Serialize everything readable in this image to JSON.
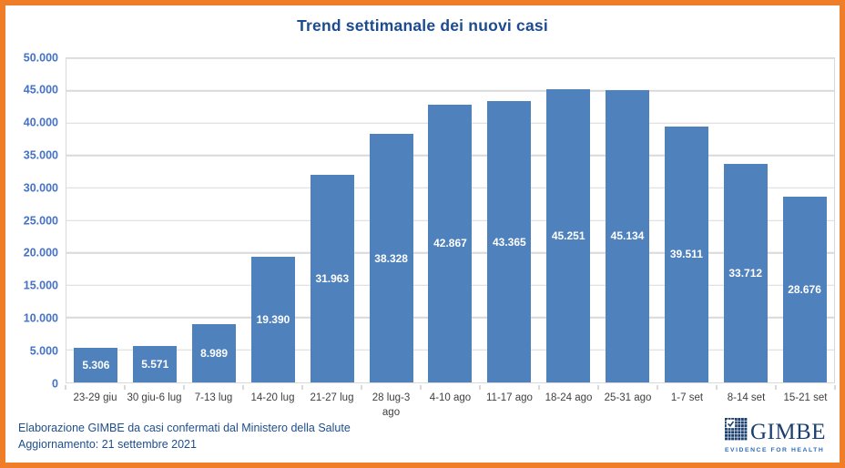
{
  "chart_data": {
    "type": "bar",
    "title": "Trend settimanale dei nuovi casi",
    "categories": [
      "23-29 giu",
      "30 giu-6 lug",
      "7-13 lug",
      "14-20 lug",
      "21-27 lug",
      "28 lug-3 ago",
      "4-10 ago",
      "11-17 ago",
      "18-24 ago",
      "25-31 ago",
      "1-7 set",
      "8-14 set",
      "15-21 set"
    ],
    "values": [
      5306,
      5571,
      8989,
      19390,
      31963,
      38328,
      42867,
      43365,
      45251,
      45134,
      39511,
      33712,
      28676
    ],
    "value_labels": [
      "5.306",
      "5.571",
      "8.989",
      "19.390",
      "31.963",
      "38.328",
      "42.867",
      "43.365",
      "45.251",
      "45.134",
      "39.511",
      "33.712",
      "28.676"
    ],
    "xlabel": "",
    "ylabel": "",
    "ylim": [
      0,
      50000
    ],
    "ytick_step": 5000,
    "ytick_labels": [
      "0",
      "5.000",
      "10.000",
      "15.000",
      "20.000",
      "25.000",
      "30.000",
      "35.000",
      "40.000",
      "45.000",
      "50.000"
    ],
    "grid": true,
    "legend": "none"
  },
  "footer": {
    "source_line": "Elaborazione GIMBE da casi confermati dal Ministero della Salute",
    "update_line": "Aggiornamento: 21 settembre 2021"
  },
  "logo": {
    "name": "GIMBE",
    "tagline": "EVIDENCE FOR HEALTH"
  },
  "colors": {
    "frame_orange": "#F07D28",
    "title_blue": "#1C4B8F",
    "bar_blue": "#4F81BD",
    "value_label_white": "#FFFFFF",
    "y_label_blue": "#4472C4",
    "x_label_gray": "#3F3F3F",
    "grid_gray": "#D9D9D9",
    "footer_blue": "#1F4E8C",
    "logo_navy": "#1B3F6E",
    "logo_tagline_blue": "#2F6DB5"
  }
}
